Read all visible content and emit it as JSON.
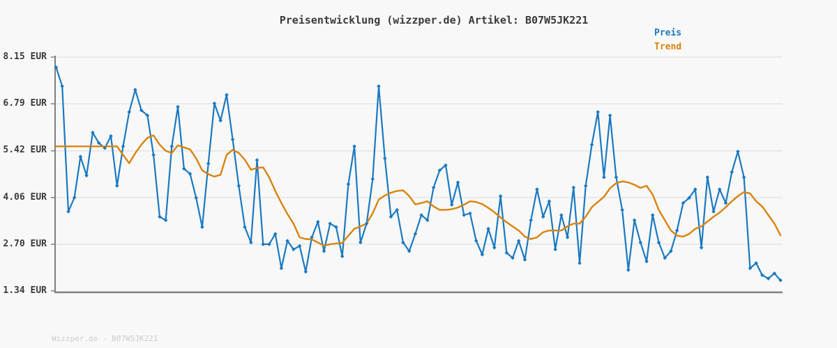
{
  "header": {
    "title": "Preisentwicklung (wizzper.de) Artikel: B07W5JK221"
  },
  "legend": {
    "items": [
      {
        "label": "Preis",
        "color": "#1b79c0"
      },
      {
        "label": "Trend",
        "color": "#d8830e"
      }
    ]
  },
  "y_axis": {
    "unit": "EUR",
    "tick_labels": [
      "8.15 EUR",
      "6.79 EUR",
      "5.42 EUR",
      "4.06 EUR",
      "2.70 EUR",
      "1.34 EUR"
    ],
    "tick_values": [
      8.15,
      6.79,
      5.42,
      4.06,
      2.7,
      1.34
    ]
  },
  "x_axis": {
    "tick_labels": []
  },
  "watermark": {
    "text": "Wizzper.de - B07W5JK221"
  },
  "colors": {
    "background": "#f8f8f8",
    "grid": "#e5e5e5",
    "axis": "#7f7f7f",
    "price": "#1b79c0",
    "trend": "#d8830e",
    "text": "#3b3b3b",
    "watermark": "#cccccc"
  },
  "chart_data": {
    "type": "line",
    "title": "Preisentwicklung (wizzper.de) Artikel: B07W5JK221",
    "xlabel": "",
    "ylabel": "EUR",
    "ylim": [
      1.3,
      8.2
    ],
    "grid": "horizontal-only",
    "legend_position": "top-right",
    "x_tick_labels_visible": false,
    "n_points": 120,
    "series": [
      {
        "name": "Preis",
        "style": "line+diamond-markers",
        "color": "#1b79c0",
        "values": [
          7.85,
          7.3,
          3.65,
          4.06,
          5.25,
          4.7,
          5.95,
          5.65,
          5.5,
          5.85,
          4.4,
          5.55,
          6.55,
          7.2,
          6.6,
          6.45,
          5.3,
          3.5,
          3.4,
          5.55,
          6.7,
          4.9,
          4.75,
          4.05,
          3.2,
          5.05,
          6.8,
          6.3,
          7.05,
          5.75,
          4.4,
          3.2,
          2.75,
          5.15,
          2.7,
          2.7,
          3.0,
          2.0,
          2.8,
          2.55,
          2.65,
          1.9,
          2.9,
          3.35,
          2.5,
          3.3,
          3.2,
          2.35,
          4.45,
          5.55,
          2.75,
          3.3,
          4.6,
          7.3,
          5.2,
          3.5,
          3.7,
          2.75,
          2.5,
          3.0,
          3.55,
          3.4,
          4.35,
          4.85,
          5.0,
          3.85,
          4.5,
          3.55,
          3.6,
          2.8,
          2.4,
          3.15,
          2.6,
          4.1,
          2.45,
          2.3,
          2.8,
          2.25,
          3.4,
          4.3,
          3.5,
          3.95,
          2.55,
          3.55,
          2.9,
          4.35,
          2.15,
          4.4,
          5.6,
          6.55,
          4.65,
          6.45,
          4.65,
          3.7,
          1.95,
          3.4,
          2.75,
          2.2,
          3.55,
          2.75,
          2.3,
          2.5,
          3.1,
          3.9,
          4.05,
          4.3,
          2.6,
          4.65,
          3.65,
          4.3,
          3.9,
          4.8,
          5.4,
          4.65,
          2.0,
          2.15,
          1.8,
          1.7,
          1.85,
          1.65
        ]
      },
      {
        "name": "Trend",
        "style": "line",
        "color": "#d8830e",
        "values": [
          5.55,
          5.55,
          5.55,
          5.55,
          5.55,
          5.55,
          5.55,
          5.55,
          5.55,
          5.55,
          5.55,
          5.3,
          5.06,
          5.35,
          5.6,
          5.8,
          5.87,
          5.6,
          5.42,
          5.36,
          5.58,
          5.52,
          5.46,
          5.2,
          4.85,
          4.74,
          4.67,
          4.72,
          5.3,
          5.45,
          5.36,
          5.16,
          4.87,
          4.92,
          4.94,
          4.65,
          4.25,
          3.9,
          3.58,
          3.3,
          2.9,
          2.85,
          2.84,
          2.75,
          2.66,
          2.7,
          2.72,
          2.74,
          2.95,
          3.15,
          3.22,
          3.3,
          3.6,
          4.0,
          4.12,
          4.2,
          4.25,
          4.27,
          4.1,
          3.86,
          3.9,
          3.95,
          3.8,
          3.7,
          3.7,
          3.72,
          3.77,
          3.85,
          3.95,
          3.93,
          3.87,
          3.76,
          3.63,
          3.48,
          3.34,
          3.22,
          3.1,
          2.92,
          2.85,
          2.9,
          3.05,
          3.1,
          3.1,
          3.1,
          3.22,
          3.3,
          3.3,
          3.5,
          3.78,
          3.93,
          4.08,
          4.33,
          4.48,
          4.53,
          4.5,
          4.43,
          4.34,
          4.4,
          4.15,
          3.7,
          3.4,
          3.1,
          2.95,
          2.92,
          3.0,
          3.15,
          3.22,
          3.36,
          3.5,
          3.62,
          3.78,
          3.95,
          4.1,
          4.22,
          4.18,
          3.95,
          3.8,
          3.55,
          3.3,
          2.96
        ]
      }
    ]
  }
}
